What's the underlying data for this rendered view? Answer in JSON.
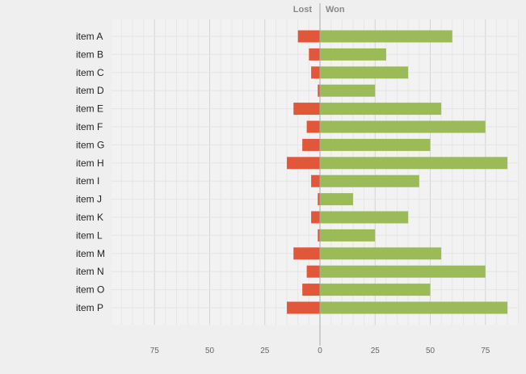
{
  "chart_data": {
    "type": "bar",
    "orientation": "horizontal-diverging",
    "headers": {
      "left": "Lost",
      "right": "Won"
    },
    "categories": [
      "item A",
      "item B",
      "item C",
      "item D",
      "item E",
      "item F",
      "item G",
      "item H",
      "item I",
      "item J",
      "item K",
      "item L",
      "item M",
      "item N",
      "item O",
      "item P"
    ],
    "series": [
      {
        "name": "Lost",
        "color": "#e0573a",
        "values": [
          10,
          5,
          4,
          1,
          12,
          6,
          8,
          15,
          4,
          1,
          4,
          1,
          12,
          6,
          8,
          15
        ]
      },
      {
        "name": "Won",
        "color": "#9bbb59",
        "values": [
          60,
          30,
          40,
          25,
          55,
          75,
          50,
          85,
          45,
          15,
          40,
          25,
          55,
          75,
          50,
          85
        ]
      }
    ],
    "x_ticks": [
      {
        "value": -75,
        "label": "75"
      },
      {
        "value": -50,
        "label": "50"
      },
      {
        "value": -25,
        "label": "25"
      },
      {
        "value": 0,
        "label": "0"
      },
      {
        "value": 25,
        "label": "25"
      },
      {
        "value": 50,
        "label": "50"
      },
      {
        "value": 75,
        "label": "75"
      }
    ],
    "xlim": [
      -95,
      90
    ],
    "grid": true,
    "colors": {
      "lost": "#e0573a",
      "won": "#9bbb59",
      "background": "#efefef",
      "axis": "#999999",
      "grid": "#d8d8d8"
    }
  }
}
